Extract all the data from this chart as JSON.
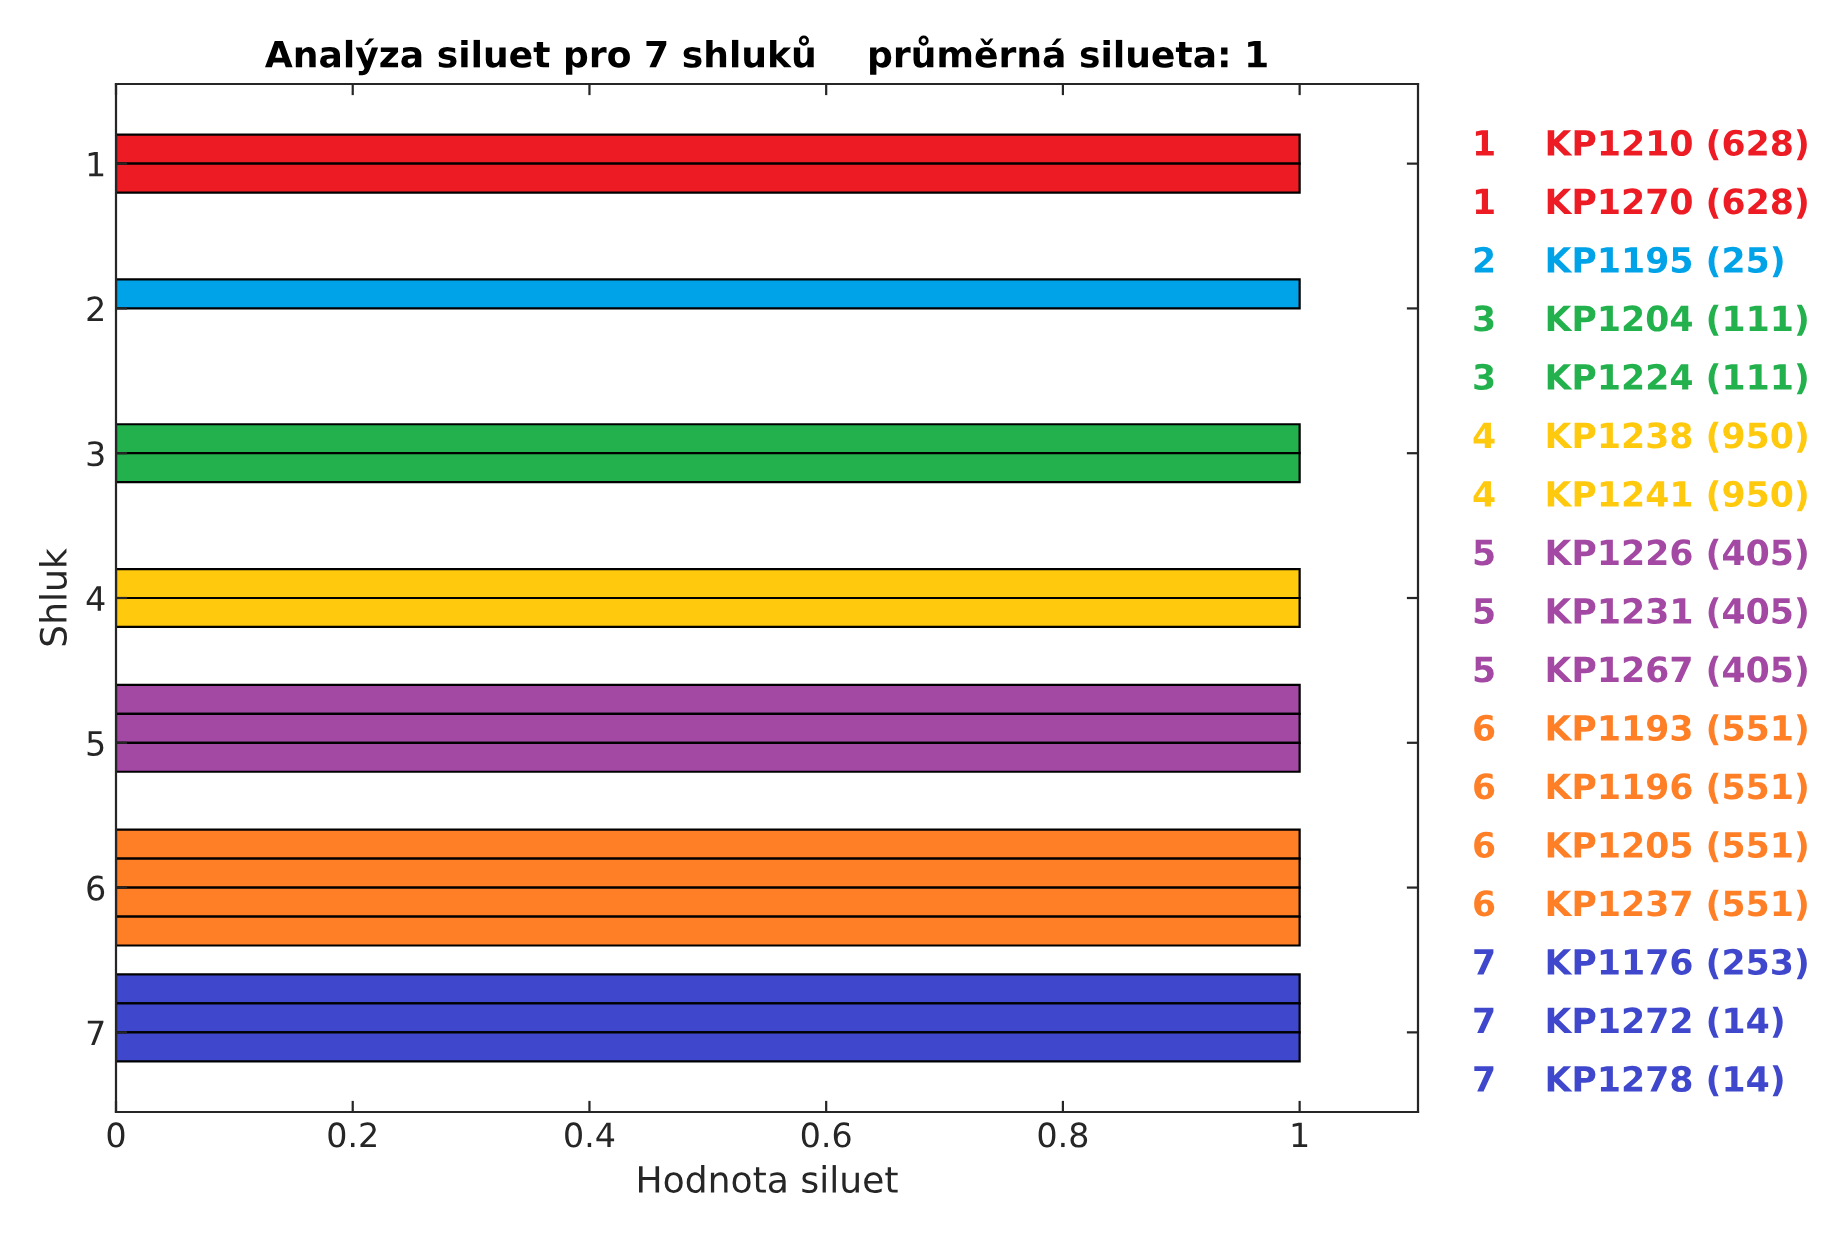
{
  "chart_data": {
    "type": "bar",
    "orientation": "horizontal",
    "title": "Analýza siluet pro 7 shluků    průměrná silueta: 1",
    "xlabel": "Hodnota siluet",
    "ylabel": "Shluk",
    "categories": [
      "1",
      "2",
      "3",
      "4",
      "5",
      "6",
      "7"
    ],
    "series": [
      {
        "values": [
          null,
          null,
          null,
          null,
          1,
          1,
          1
        ],
        "colors": [
          "#ed1c24",
          "#00a2e8",
          "#22b14c",
          "#ffc90e",
          "#a349a4",
          "#ff7f27",
          "#3f48cc"
        ]
      },
      {
        "values": [
          1,
          1,
          1,
          1,
          1,
          1,
          1
        ],
        "colors": [
          "#ed1c24",
          "#00a2e8",
          "#22b14c",
          "#ffc90e",
          "#a349a4",
          "#ff7f27",
          "#3f48cc"
        ]
      },
      {
        "values": [
          1,
          null,
          1,
          1,
          1,
          1,
          1
        ],
        "colors": [
          "#ed1c24",
          "#00a2e8",
          "#22b14c",
          "#ffc90e",
          "#a349a4",
          "#ff7f27",
          "#3f48cc"
        ]
      },
      {
        "values": [
          null,
          null,
          null,
          null,
          null,
          1,
          null
        ],
        "colors": [
          "#ed1c24",
          "#00a2e8",
          "#22b14c",
          "#ffc90e",
          "#a349a4",
          "#ff7f27",
          "#3f48cc"
        ]
      }
    ],
    "xlim": [
      0,
      1.1
    ],
    "xticks": [
      0,
      0.2,
      0.4,
      0.6,
      0.8,
      1
    ],
    "grid": false,
    "annotations": [
      "1    KP1210 (628)",
      "1    KP1270 (628)",
      "2    KP1195 (25)",
      "3    KP1204 (111)",
      "3    KP1224 (111)",
      "4    KP1238 (950)",
      "4    KP1241 (950)",
      "5    KP1226 (405)",
      "5    KP1231 (405)",
      "5    KP1267 (405)",
      "6    KP1193 (551)",
      "6    KP1196 (551)",
      "6    KP1205 (551)",
      "6    KP1237 (551)",
      "7    KP1176 (253)",
      "7    KP1272 (14)",
      "7    KP1278 (14)"
    ]
  }
}
